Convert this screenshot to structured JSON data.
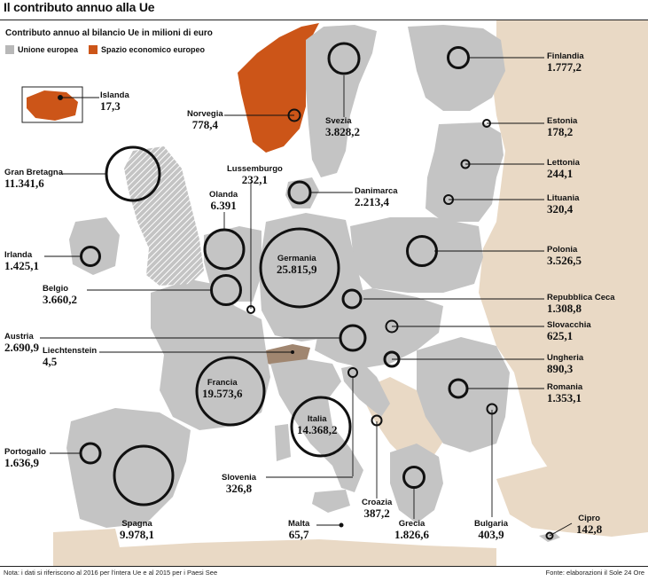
{
  "title": "Il contributo annuo alla Ue",
  "subtitle": "Contributo annuo al bilancio Ue in milioni di euro",
  "legend": [
    {
      "label": "Unione europea",
      "color": "#b8b8b8"
    },
    {
      "label": "Spazio economico europeo",
      "color": "#cc5518"
    }
  ],
  "colors": {
    "eu": "#c4c4c4",
    "eea": "#cc5518",
    "other": "#e9d9c5",
    "sea": "#ffffff",
    "circle": "#111111",
    "liechtenstein": "#a08670"
  },
  "countries": [
    {
      "name": "Islanda",
      "value": "17,3",
      "value_num": 17.3,
      "group": "eea"
    },
    {
      "name": "Norvegia",
      "value": "778,4",
      "value_num": 778.4,
      "group": "eea"
    },
    {
      "name": "Svezia",
      "value": "3.828,2",
      "value_num": 3828.2,
      "group": "eu"
    },
    {
      "name": "Finlandia",
      "value": "1.777,2",
      "value_num": 1777.2,
      "group": "eu"
    },
    {
      "name": "Estonia",
      "value": "178,2",
      "value_num": 178.2,
      "group": "eu"
    },
    {
      "name": "Lettonia",
      "value": "244,1",
      "value_num": 244.1,
      "group": "eu"
    },
    {
      "name": "Lituania",
      "value": "320,4",
      "value_num": 320.4,
      "group": "eu"
    },
    {
      "name": "Gran Bretagna",
      "value": "11.341,6",
      "value_num": 11341.6,
      "group": "eu"
    },
    {
      "name": "Danimarca",
      "value": "2.213,4",
      "value_num": 2213.4,
      "group": "eu"
    },
    {
      "name": "Lussemburgo",
      "value": "232,1",
      "value_num": 232.1,
      "group": "eu"
    },
    {
      "name": "Olanda",
      "value": "6.391",
      "value_num": 6391,
      "group": "eu"
    },
    {
      "name": "Irlanda",
      "value": "1.425,1",
      "value_num": 1425.1,
      "group": "eu"
    },
    {
      "name": "Germania",
      "value": "25.815,9",
      "value_num": 25815.9,
      "group": "eu"
    },
    {
      "name": "Polonia",
      "value": "3.526,5",
      "value_num": 3526.5,
      "group": "eu"
    },
    {
      "name": "Belgio",
      "value": "3.660,2",
      "value_num": 3660.2,
      "group": "eu"
    },
    {
      "name": "Repubblica Ceca",
      "value": "1.308,8",
      "value_num": 1308.8,
      "group": "eu"
    },
    {
      "name": "Slovacchia",
      "value": "625,1",
      "value_num": 625.1,
      "group": "eu"
    },
    {
      "name": "Austria",
      "value": "2.690,9",
      "value_num": 2690.9,
      "group": "eu"
    },
    {
      "name": "Liechtenstein",
      "value": "4,5",
      "value_num": 4.5,
      "group": "eea"
    },
    {
      "name": "Ungheria",
      "value": "890,3",
      "value_num": 890.3,
      "group": "eu"
    },
    {
      "name": "Francia",
      "value": "19.573,6",
      "value_num": 19573.6,
      "group": "eu"
    },
    {
      "name": "Romania",
      "value": "1.353,1",
      "value_num": 1353.1,
      "group": "eu"
    },
    {
      "name": "Italia",
      "value": "14.368,2",
      "value_num": 14368.2,
      "group": "eu"
    },
    {
      "name": "Portogallo",
      "value": "1.636,9",
      "value_num": 1636.9,
      "group": "eu"
    },
    {
      "name": "Slovenia",
      "value": "326,8",
      "value_num": 326.8,
      "group": "eu"
    },
    {
      "name": "Croazia",
      "value": "387,2",
      "value_num": 387.2,
      "group": "eu"
    },
    {
      "name": "Spagna",
      "value": "9.978,1",
      "value_num": 9978.1,
      "group": "eu"
    },
    {
      "name": "Grecia",
      "value": "1.826,6",
      "value_num": 1826.6,
      "group": "eu"
    },
    {
      "name": "Bulgaria",
      "value": "403,9",
      "value_num": 403.9,
      "group": "eu"
    },
    {
      "name": "Malta",
      "value": "65,7",
      "value_num": 65.7,
      "group": "eu"
    },
    {
      "name": "Cipro",
      "value": "142,8",
      "value_num": 142.8,
      "group": "eu"
    }
  ],
  "footnote": "Nota: i dati si riferiscono al 2016 per l'intera Ue e al 2015 per i Paesi See",
  "source": "Fonte: elaborazioni il Sole 24 Ore"
}
